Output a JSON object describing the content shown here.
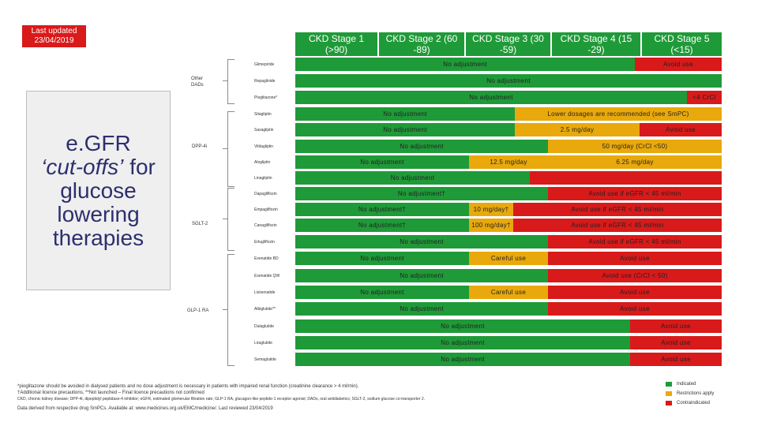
{
  "last_updated": {
    "line1": "Last updated",
    "line2": "23/04/2019"
  },
  "main_title": {
    "line1": "e.GFR",
    "line2": "‘cut-offs’",
    "line2_rest": " for",
    "line3": "glucose",
    "line4": "lowering",
    "line5": "therapies"
  },
  "stages": [
    {
      "line1": "CKD Stage 1",
      "line2": "(>90)"
    },
    {
      "line1": "CKD Stage 2 (60",
      "line2": "-89)"
    },
    {
      "line1": "CKD Stage 3 (30",
      "line2": "-59)"
    },
    {
      "line1": "CKD Stage 4 (15",
      "line2": "-29)"
    },
    {
      "line1": "CKD Stage 5",
      "line2": "(<15)"
    }
  ],
  "classes": {
    "other": {
      "line1": "Other",
      "line2": "DADs"
    },
    "dpp4": "DPP-4i",
    "sglt2": "SGLT-2",
    "glp1": "GLP-1 RA"
  },
  "colors": {
    "indicated": "#1f9a38",
    "restrictions": "#e9a90c",
    "contraindicated": "#d91a1a"
  },
  "rows": [
    {
      "drug": "Glimepiride",
      "segments": [
        {
          "text": "No adjustment",
          "color": "green"
        },
        {
          "text": "Avoid use",
          "color": "red"
        }
      ]
    },
    {
      "drug": "Repaglinide",
      "segments": [
        {
          "text": "No adjustment",
          "color": "green"
        }
      ]
    },
    {
      "drug": "Pioglitazone*",
      "segments": [
        {
          "text": "No adjustment",
          "color": "green"
        },
        {
          "text": "<4 CrCl",
          "color": "red"
        }
      ]
    },
    {
      "drug": "Sitagliptin",
      "segments": [
        {
          "text": "No adjustment",
          "color": "green"
        },
        {
          "text": "Lower dosages are recommended (see SmPC)",
          "color": "yellow"
        }
      ]
    },
    {
      "drug": "Saxagliptin",
      "segments": [
        {
          "text": "No adjustment",
          "color": "green"
        },
        {
          "text": "2.5 mg/day",
          "color": "yellow"
        },
        {
          "text": "Avoid use",
          "color": "red"
        }
      ]
    },
    {
      "drug": "Vildagliptin",
      "segments": [
        {
          "text": "No adjustment",
          "color": "green"
        },
        {
          "text": "50 mg/day (CrCl <50)",
          "color": "yellow"
        }
      ]
    },
    {
      "drug": "Alogliptin",
      "segments": [
        {
          "text": "No adjustment",
          "color": "green"
        },
        {
          "text": "12.5 mg/day",
          "color": "yellow"
        },
        {
          "text": "6.25 mg/day",
          "color": "yellow"
        }
      ]
    },
    {
      "drug": "Linagliptin",
      "segments": [
        {
          "text": "No adjustment",
          "color": "green"
        }
      ]
    },
    {
      "drug": "Dapagliflozin",
      "segments": [
        {
          "text": "No adjustment†",
          "color": "green"
        },
        {
          "text": "Avoid use if eGFR < 45 ml/min",
          "color": "red"
        }
      ]
    },
    {
      "drug": "Empagliflozin",
      "segments": [
        {
          "text": "No adjustment†",
          "color": "green"
        },
        {
          "text": "10 mg/day†",
          "color": "yellow"
        },
        {
          "text": "Avoid use if eGFR < 45 ml/min",
          "color": "red"
        }
      ]
    },
    {
      "drug": "Canagliflozin",
      "segments": [
        {
          "text": "No adjustment†",
          "color": "green"
        },
        {
          "text": "100 mg/day†",
          "color": "yellow"
        },
        {
          "text": "Avoid use if eGFR < 45 ml/min",
          "color": "red"
        }
      ]
    },
    {
      "drug": "Ertugliflozin",
      "segments": [
        {
          "text": "No adjustment",
          "color": "green"
        },
        {
          "text": "Avoid use if eGFR < 45 ml/min",
          "color": "red"
        }
      ]
    },
    {
      "drug": "Exenatide BD",
      "segments": [
        {
          "text": "No adjustment",
          "color": "green"
        },
        {
          "text": "Careful use",
          "color": "yellow"
        },
        {
          "text": "Avoid use",
          "color": "red"
        }
      ]
    },
    {
      "drug": "Exenatide QW",
      "segments": [
        {
          "text": "No adjustment",
          "color": "green"
        },
        {
          "text": "Avoid use (CrCl < 50)",
          "color": "red"
        }
      ]
    },
    {
      "drug": "Lixisenatide",
      "segments": [
        {
          "text": "No adjustment",
          "color": "green"
        },
        {
          "text": "Careful use",
          "color": "yellow"
        },
        {
          "text": "Avoid use",
          "color": "red"
        }
      ]
    },
    {
      "drug": "Albiglutide**",
      "segments": [
        {
          "text": "No adjustment",
          "color": "green"
        },
        {
          "text": "Avoid use",
          "color": "red"
        }
      ]
    },
    {
      "drug": "Dulaglutide",
      "segments": [
        {
          "text": "No adjustment",
          "color": "green"
        },
        {
          "text": "Avoid use",
          "color": "red"
        }
      ]
    },
    {
      "drug": "Liraglutide",
      "segments": [
        {
          "text": "No adjustment",
          "color": "green"
        },
        {
          "text": "Avoid use",
          "color": "red"
        }
      ]
    },
    {
      "drug": "Semaglutide",
      "segments": [
        {
          "text": "No adjustment",
          "color": "green"
        },
        {
          "text": "Avoid use",
          "color": "red"
        }
      ]
    }
  ],
  "footnotes": {
    "line1": "*pioglitazone should be avoided in dialysed patients and no dose adjustment is necessary in patients with impaired renal function (creatinine clearance > 4 ml/min).",
    "line2": "†Additional licence precautions, **Not launched – Final licence precautions not confirmed",
    "line3": "CKD, chronic kidney disease; DPP-4i, dipeptidyl peptidase-4 inhibitor; eGFR, estimated glomerular filtration rate; GLP-1 RA, glucagon-like peptide-1 receptor agonist; DADs, oral antidiabetics; SGLT-2, sodium glucose co-transporter 2.",
    "line4": "Data derived from respective drug SmPCs. Available at: www.medicines.org.uk/EMC/medicine/. Last reviewed 23/04/2019"
  },
  "legend": {
    "indicated": "Indicated",
    "restrictions": "Restrictions apply",
    "contraindicated": "Contraindicated"
  }
}
